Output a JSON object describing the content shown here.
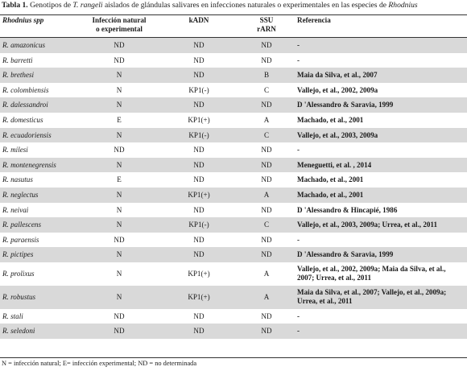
{
  "caption": {
    "label": "Tabla 1.",
    "text_a": " Genotipos de ",
    "text_b": "T. rangeli",
    "text_c": " aislados de glándulas salivares en infecciones naturales o experimentales en las especies de ",
    "text_d": "Rhodnius"
  },
  "headers": {
    "species": "Rhodnius spp",
    "infection_line1": "Infección natural",
    "infection_line2": "o experimental",
    "kadn": "kADN",
    "ssu_line1": "SSU",
    "ssu_line2": "rARN",
    "reference": "Referencia"
  },
  "rows": [
    {
      "species": "R. amazonicus",
      "infection": "ND",
      "kadn": "ND",
      "ssu": "ND",
      "reference": "-"
    },
    {
      "species": "R. barretti",
      "infection": "ND",
      "kadn": "ND",
      "ssu": "ND",
      "reference": "-"
    },
    {
      "species": "R. brethesi",
      "infection": "N",
      "kadn": "ND",
      "ssu": "B",
      "reference": "Maia da Silva, et al., 2007"
    },
    {
      "species": "R. colombiensis",
      "infection": "N",
      "kadn": "KP1(-)",
      "ssu": "C",
      "reference": "Vallejo, et al., 2002, 2009a"
    },
    {
      "species": "R. dalessandroi",
      "infection": "N",
      "kadn": "ND",
      "ssu": "ND",
      "reference": "D 'Alessandro & Saravia, 1999"
    },
    {
      "species": "R. domesticus",
      "infection": "E",
      "kadn": "KP1(+)",
      "ssu": "A",
      "reference": "Machado, et al., 2001"
    },
    {
      "species": "R. ecuadoriensis",
      "infection": "N",
      "kadn": "KP1(-)",
      "ssu": "C",
      "reference": "Vallejo, et al., 2003, 2009a"
    },
    {
      "species": "R. milesi",
      "infection": "ND",
      "kadn": "ND",
      "ssu": "ND",
      "reference": "-"
    },
    {
      "species": "R. montenegrensis",
      "infection": "N",
      "kadn": "ND",
      "ssu": "ND",
      "reference": "Meneguetti, et al. , 2014"
    },
    {
      "species": "R. nasutus",
      "infection": "E",
      "kadn": "ND",
      "ssu": "ND",
      "reference": "Machado, et al., 2001"
    },
    {
      "species": "R. neglectus",
      "infection": "N",
      "kadn": "KP1(+)",
      "ssu": "A",
      "reference": "Machado, et al., 2001"
    },
    {
      "species": "R. neivai",
      "infection": "N",
      "kadn": "ND",
      "ssu": "ND",
      "reference": "D 'Alessandro & Hincapié, 1986"
    },
    {
      "species": "R. pallescens",
      "infection": "N",
      "kadn": "KP1(-)",
      "ssu": "C",
      "reference": "Vallejo, et al., 2003, 2009a; Urrea, et al., 2011"
    },
    {
      "species": "R. paraensis",
      "infection": "ND",
      "kadn": "ND",
      "ssu": "ND",
      "reference": "-"
    },
    {
      "species": "R. pictipes",
      "infection": "N",
      "kadn": "ND",
      "ssu": "ND",
      "reference": "D 'Alessandro & Saravia, 1999"
    },
    {
      "species": "R. prolixus",
      "infection": "N",
      "kadn": "KP1(+)",
      "ssu": "A",
      "reference": "Vallejo, et al., 2002, 2009a; Maia da Silva, et al., 2007; Urrea, et al., 2011"
    },
    {
      "species": "R. robustus",
      "infection": "N",
      "kadn": "KP1(+)",
      "ssu": "A",
      "reference": "Maia da Silva, et al., 2007; Vallejo, et al., 2009a; Urrea, et al., 2011"
    },
    {
      "species": "R. stali",
      "infection": "ND",
      "kadn": "ND",
      "ssu": "ND",
      "reference": "-"
    },
    {
      "species": "R. seledoni",
      "infection": "ND",
      "kadn": "ND",
      "ssu": "ND",
      "reference": "-"
    }
  ],
  "footnote": "N = infección natural; E= infección experimental; ND = no determinada",
  "colors": {
    "row_shade": "#d9d9d9",
    "rule": "#333333"
  }
}
